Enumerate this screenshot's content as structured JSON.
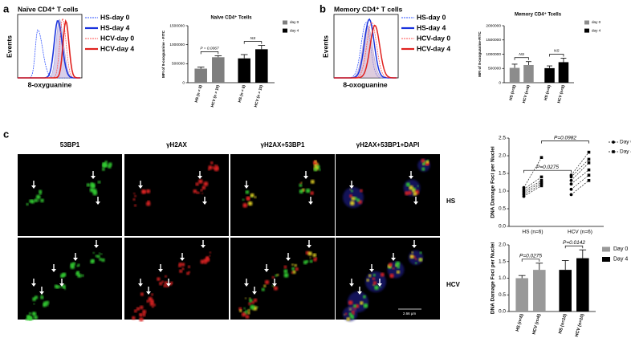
{
  "panels": {
    "a": {
      "letter": "a",
      "title": "Naïve CD4⁺ T cells",
      "y_label": "Events",
      "x_label": "8-oxyguanine",
      "legend": [
        "HS-day 0",
        "HS-day 4",
        "HCV-day 0",
        "HCV-day 4"
      ]
    },
    "b": {
      "letter": "b",
      "title": "Memory CD4⁺ T cells",
      "y_label": "Events",
      "x_label": "8-oxoguanine",
      "legend": [
        "HS-day 0",
        "HS-day 4",
        "HCV-day 0",
        "HCV-day 4"
      ]
    },
    "c": {
      "letter": "c",
      "columns": [
        "53BP1",
        "γH2AX",
        "γH2AX+53BP1",
        "γH2AX+53BP1+DAPI"
      ],
      "rows": [
        "HS",
        "HCV"
      ],
      "scale_bar": "2.66 μm"
    }
  },
  "chart_data": [
    {
      "type": "bar",
      "title": "Naïve CD4⁺ Tcells",
      "y_label": "MFI of 8-oxoguanine - FITC",
      "categories": [
        "HS (n = 8)",
        "HCV (n = 10)",
        "HS (n = 8)",
        "HCV (n = 10)"
      ],
      "series": [
        {
          "name": "day 0",
          "color": "#7f7f7f",
          "values": [
            370000,
            670000,
            null,
            null
          ],
          "errors": [
            40000,
            40000,
            null,
            null
          ]
        },
        {
          "name": "day 4",
          "color": "#000000",
          "values": [
            null,
            null,
            640000,
            880000
          ],
          "errors": [
            null,
            null,
            100000,
            100000
          ]
        }
      ],
      "ylim": [
        0,
        1500000
      ],
      "yticks": [
        0,
        500000,
        1000000,
        1500000
      ],
      "annotations": [
        "P = 0.0067",
        "NS"
      ]
    },
    {
      "type": "bar",
      "title": "Memory CD4⁺ Tcells",
      "y_label": "MFI of 8-oxoguanine-FITC",
      "categories": [
        "HS (n=8)",
        "HCV (n=8)",
        "HS (n=8)",
        "HCV (n=8)"
      ],
      "series": [
        {
          "name": "day 0",
          "color": "#8c8c8c",
          "values": [
            520000,
            620000,
            null,
            null
          ],
          "errors": [
            130000,
            120000,
            null,
            null
          ]
        },
        {
          "name": "day 4",
          "color": "#000000",
          "values": [
            null,
            null,
            510000,
            720000
          ],
          "errors": [
            null,
            null,
            80000,
            140000
          ]
        }
      ],
      "ylim": [
        0,
        2000000
      ],
      "yticks": [
        0,
        500000,
        1000000,
        1500000,
        2000000
      ],
      "annotations": [
        "NS",
        "NS"
      ]
    },
    {
      "type": "paired",
      "y_label": "DNA Damage Foci per Nuclei",
      "categories": [
        "HS (n=6)",
        "HCV (n=6)"
      ],
      "series": [
        {
          "name": "Day 0",
          "marker": "circle",
          "color": "#000000",
          "values": [
            [
              0.85,
              0.9,
              0.95,
              1.0,
              1.05,
              1.1
            ],
            [
              0.9,
              1.05,
              1.2,
              1.3,
              1.4,
              1.45
            ]
          ]
        },
        {
          "name": "Day 4",
          "marker": "square",
          "color": "#000000",
          "values": [
            [
              1.15,
              1.2,
              1.25,
              1.3,
              1.4,
              1.95
            ],
            [
              1.3,
              1.45,
              1.6,
              1.8,
              1.9,
              2.1
            ]
          ]
        }
      ],
      "ylim": [
        0,
        2.5
      ],
      "yticks": [
        {
          "value": 0,
          "label": "0.0"
        },
        {
          "value": 0.5,
          "label": "0.5"
        },
        {
          "value": 1,
          "label": "1.0"
        },
        {
          "value": 1.5,
          "label": "1.5"
        },
        {
          "value": 2,
          "label": "2.0"
        },
        {
          "value": 2.5,
          "label": "2.5"
        }
      ],
      "annotations": [
        "P=0.0275",
        "P=0.0982"
      ]
    },
    {
      "type": "bar",
      "y_label": "DNA Damage Foci per Nuclei",
      "categories": [
        "HS (n=6)",
        "HCV (n=6)",
        "HS (n=10)",
        "HCV (n=10)"
      ],
      "series": [
        {
          "name": "Day 0",
          "color": "#999999",
          "values": [
            1.0,
            1.25,
            null,
            null
          ],
          "errors": [
            0.08,
            0.2,
            null,
            null
          ]
        },
        {
          "name": "Day 4",
          "color": "#000000",
          "values": [
            null,
            null,
            1.25,
            1.6
          ],
          "errors": [
            null,
            null,
            0.28,
            0.25
          ]
        }
      ],
      "ylim": [
        0,
        2
      ],
      "yticks": [
        {
          "value": 0,
          "label": "0.0"
        },
        {
          "value": 0.5,
          "label": "0.5"
        },
        {
          "value": 1,
          "label": "1.0"
        },
        {
          "value": 1.5,
          "label": "1.5"
        },
        {
          "value": 2,
          "label": "2.0"
        }
      ],
      "annotations": [
        "P=0.0275",
        "P=0.0142"
      ]
    }
  ]
}
